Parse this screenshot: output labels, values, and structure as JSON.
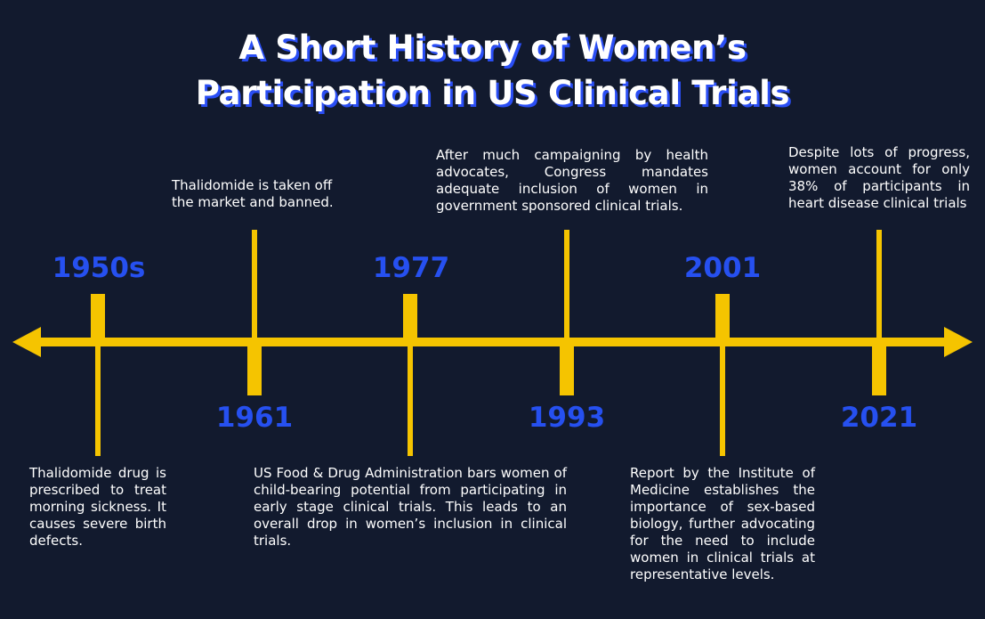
{
  "title": {
    "line1": "A Short History of Women’s",
    "line2": "Participation in US Clinical Trials"
  },
  "colors": {
    "background": "#121a2e",
    "timeline": "#f5c400",
    "year": "#2650f0",
    "title_shadow": "#2a4ef5",
    "text": "#ffffff"
  },
  "events": [
    {
      "year": "1950s",
      "text": "Thalidomide drug is prescribed to treat morning sickness. It causes severe birth defects."
    },
    {
      "year": "1961",
      "text": "Thalidomide is taken off the market and banned."
    },
    {
      "year": "1977",
      "text": "US Food & Drug Administration bars women of child-bearing potential from participating in early stage clinical trials. This leads to an overall drop in women’s inclusion in clinical trials."
    },
    {
      "year": "1993",
      "text": "After much campaigning by health advocates, Congress mandates adequate inclusion of women in government sponsored clinical trials."
    },
    {
      "year": "2001",
      "text": "Report by the Institute of Medicine establishes the importance of sex-based biology, further advocating for the need to include women in clinical trials at representative levels."
    },
    {
      "year": "2021",
      "text": "Despite lots of progress, women account for only 38% of participants in heart disease clinical trials"
    }
  ]
}
